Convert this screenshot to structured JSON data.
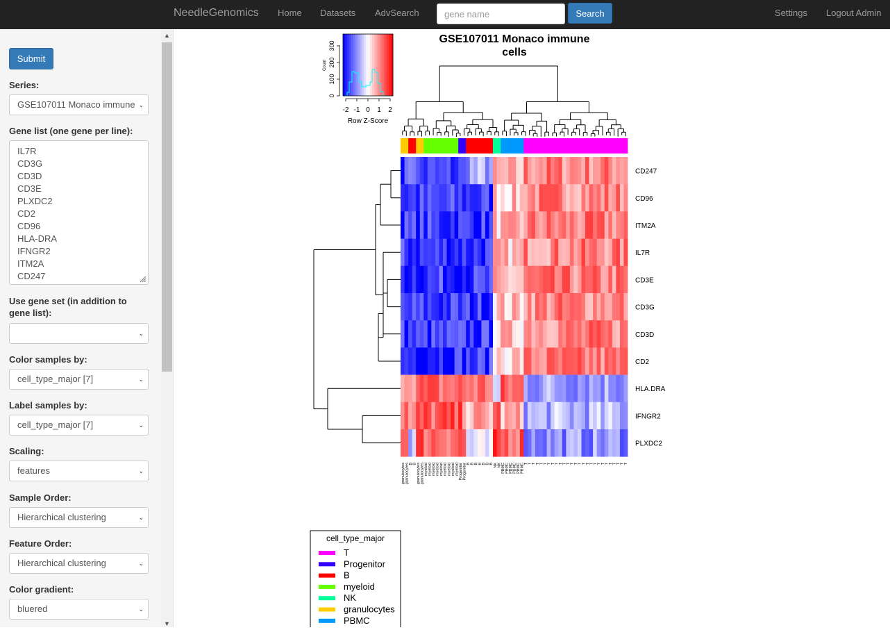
{
  "navbar": {
    "brand": "NeedleGenomics",
    "links": [
      "Home",
      "Datasets",
      "AdvSearch"
    ],
    "search_placeholder": "gene name",
    "search_button": "Search",
    "right_links": [
      "Settings",
      "Logout Admin"
    ]
  },
  "sidebar": {
    "submit_label": "Submit",
    "series_label": "Series:",
    "series_value": "GSE107011 Monaco immune",
    "genelist_label": "Gene list (one gene per line):",
    "genes": [
      "IL7R",
      "CD3G",
      "CD3D",
      "CD3E",
      "PLXDC2",
      "CD2",
      "CD96",
      "HLA-DRA",
      "IFNGR2",
      "ITM2A",
      "CD247"
    ],
    "geneset_label_1": "Use gene set (in addition to",
    "geneset_label_2": "gene list):",
    "geneset_value": "",
    "color_by_label": "Color samples by:",
    "color_by_value": "cell_type_major [7]",
    "label_by_label": "Label samples by:",
    "label_by_value": "cell_type_major [7]",
    "scaling_label": "Scaling:",
    "scaling_value": "features",
    "sample_order_label": "Sample Order:",
    "sample_order_value": "Hierarchical clustering",
    "feature_order_label": "Feature Order:",
    "feature_order_value": "Hierarchical clustering",
    "gradient_label": "Color gradient:",
    "gradient_value": "bluered"
  },
  "chart_data": {
    "type": "heatmap",
    "title_line1": "GSE107011 Monaco immune",
    "title_line2": "cells",
    "key": {
      "xlabel": "Row Z-Score",
      "ylabel": "Count",
      "x_ticks": [
        "-2",
        "-1",
        "0",
        "1",
        "2"
      ],
      "y_ticks": [
        "0",
        "100",
        "200",
        "300"
      ]
    },
    "rows": [
      "CD247",
      "CD96",
      "ITM2A",
      "IL7R",
      "CD3E",
      "CD3G",
      "CD3D",
      "CD2",
      "HLA.DRA",
      "IFNGR2",
      "PLXDC2"
    ],
    "column_groups": [
      {
        "label": "granulocytes",
        "count": 2
      },
      {
        "label": "B",
        "count": 2
      },
      {
        "label": "granulocytes",
        "count": 2
      },
      {
        "label": "myeloid",
        "count": 9
      },
      {
        "label": "Progenitor",
        "count": 2
      },
      {
        "label": "B",
        "count": 7
      },
      {
        "label": "NK",
        "count": 2
      },
      {
        "label": "PBMC",
        "count": 6
      },
      {
        "label": "T",
        "count": 27
      }
    ],
    "legend": {
      "title": "cell_type_major",
      "items": [
        {
          "label": "T",
          "color": "#ff00ff"
        },
        {
          "label": "Progenitor",
          "color": "#3300ff"
        },
        {
          "label": "B",
          "color": "#ff0000"
        },
        {
          "label": "myeloid",
          "color": "#66ff00"
        },
        {
          "label": "NK",
          "color": "#00ff99"
        },
        {
          "label": "granulocytes",
          "color": "#ffcc00"
        },
        {
          "label": "PBMC",
          "color": "#0099ff"
        }
      ]
    }
  }
}
